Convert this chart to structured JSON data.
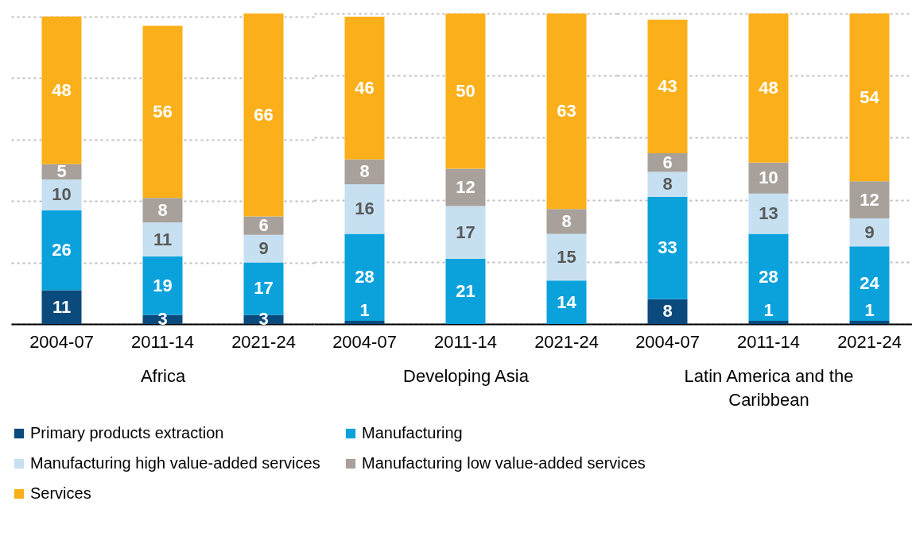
{
  "chart_data": [
    {
      "type": "bar",
      "stacked": true,
      "xlabel": "Africa",
      "categories": [
        "2004-07",
        "2011-14",
        "2021-24"
      ],
      "ylim": [
        0,
        101
      ],
      "yticks": [
        {
          "value": 0,
          "label": null
        },
        {
          "value": 20,
          "label": null
        },
        {
          "value": 40,
          "label": null
        },
        {
          "value": 60,
          "label": null
        },
        {
          "value": 80,
          "label": null
        },
        {
          "value": 100,
          "label": null
        }
      ],
      "grid": "y",
      "tick_labels": "x",
      "data_labels": true,
      "legend": "bottom",
      "series": [
        {
          "name": "Primary products extraction",
          "color": "#0b4a7d",
          "values": [
            11,
            3,
            3
          ]
        },
        {
          "name": "Manufacturing",
          "color": "#0ba2dc",
          "values": [
            26,
            19,
            17
          ]
        },
        {
          "name": "Manufacturing high value-added services",
          "color": "#c6e0f1",
          "values": [
            10,
            11,
            9
          ]
        },
        {
          "name": "Manufacturing low value-added services",
          "color": "#a8a19b",
          "values": [
            5,
            8,
            6
          ]
        },
        {
          "name": "Services",
          "color": "#fbb01b",
          "values": [
            48,
            56,
            66
          ]
        }
      ]
    },
    {
      "type": "bar",
      "stacked": true,
      "xlabel": "Developing Asia",
      "categories": [
        "2004-07",
        "2011-14",
        "2021-24"
      ],
      "ylim": [
        0,
        100
      ],
      "yticks": [
        {
          "value": 0,
          "label": null
        },
        {
          "value": 20,
          "label": null
        },
        {
          "value": 40,
          "label": null
        },
        {
          "value": 60,
          "label": null
        },
        {
          "value": 80,
          "label": null
        },
        {
          "value": 100,
          "label": null
        }
      ],
      "grid": "y",
      "tick_labels": "x",
      "data_labels": true,
      "legend": "bottom",
      "series": [
        {
          "name": "Primary products extraction",
          "color": "#0b4a7d",
          "values": [
            1,
            null,
            null
          ]
        },
        {
          "name": "Manufacturing",
          "color": "#0ba2dc",
          "values": [
            28,
            21,
            14
          ]
        },
        {
          "name": "Manufacturing high value-added services",
          "color": "#c6e0f1",
          "values": [
            16,
            17,
            15
          ]
        },
        {
          "name": "Manufacturing low value-added services",
          "color": "#a8a19b",
          "values": [
            8,
            12,
            8
          ]
        },
        {
          "name": "Services",
          "color": "#fbb01b",
          "values": [
            46,
            50,
            63
          ]
        }
      ]
    },
    {
      "type": "bar",
      "stacked": true,
      "xlabel": "Latin America and the Caribbean",
      "categories": [
        "2004-07",
        "2011-14",
        "2021-24"
      ],
      "ylim": [
        0,
        100
      ],
      "yticks": [
        {
          "value": 0,
          "label": null
        },
        {
          "value": 20,
          "label": null
        },
        {
          "value": 40,
          "label": null
        },
        {
          "value": 60,
          "label": null
        },
        {
          "value": 80,
          "label": null
        },
        {
          "value": 100,
          "label": null
        }
      ],
      "grid": "y",
      "tick_labels": "x",
      "data_labels": true,
      "legend": "bottom",
      "series": [
        {
          "name": "Primary products extraction",
          "color": "#0b4a7d",
          "values": [
            8,
            1,
            1
          ]
        },
        {
          "name": "Manufacturing",
          "color": "#0ba2dc",
          "values": [
            33,
            28,
            24
          ]
        },
        {
          "name": "Manufacturing high value-added services",
          "color": "#c6e0f1",
          "values": [
            8,
            13,
            9
          ]
        },
        {
          "name": "Manufacturing low value-added services",
          "color": "#a8a19b",
          "values": [
            6,
            10,
            12
          ]
        },
        {
          "name": "Services",
          "color": "#fbb01b",
          "values": [
            43,
            48,
            54
          ]
        }
      ]
    }
  ]
}
